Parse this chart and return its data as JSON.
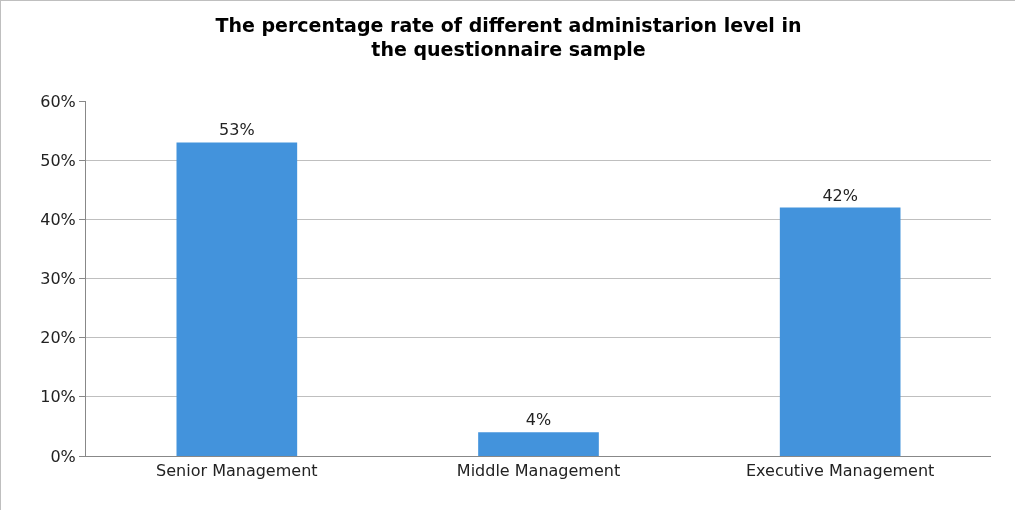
{
  "chart_data": {
    "type": "bar",
    "title": "The percentage rate of different administarion level in\nthe questionnaire sample",
    "categories": [
      "Senior Management",
      "Middle Management",
      "Executive Management"
    ],
    "values": [
      53,
      4,
      42
    ],
    "value_labels": [
      "53%",
      "4%",
      "42%"
    ],
    "color": "#4393dc",
    "ylim": [
      0,
      60
    ],
    "yticks": [
      {
        "value": 0,
        "label": "0%"
      },
      {
        "value": 10,
        "label": "10%"
      },
      {
        "value": 20,
        "label": "20%"
      },
      {
        "value": 30,
        "label": "30%"
      },
      {
        "value": 40,
        "label": "40%"
      },
      {
        "value": 50,
        "label": "50%"
      },
      {
        "value": 60,
        "label": "60%"
      }
    ],
    "grid": "y",
    "legend": false
  }
}
